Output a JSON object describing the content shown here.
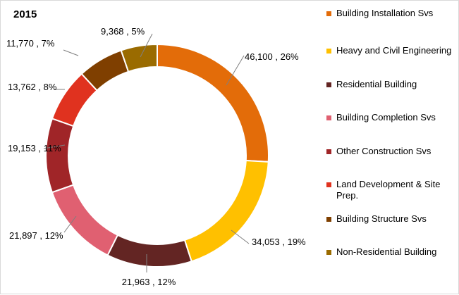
{
  "chart_data": {
    "type": "donut",
    "title": "2015",
    "categories": [
      "Building Installation Svs",
      "Heavy and Civil Engineering",
      "Residential Building",
      "Building Completion Svs",
      "Other Construction Svs",
      "Land Development & Site Prep.",
      "Building Structure Svs",
      "Non-Residential Building"
    ],
    "values": [
      46100,
      34053,
      21963,
      21897,
      19153,
      13762,
      11770,
      9368
    ],
    "percent_labels": [
      "26%",
      "19%",
      "12%",
      "12%",
      "11%",
      "8%",
      "7%",
      "5%"
    ],
    "data_labels": [
      "46,100 , 26%",
      "34,053 , 19%",
      "21,963 , 12%",
      "21,897 , 12%",
      "19,153 , 11%",
      "13,762 , 8%",
      "11,770 , 7%",
      "9,368 , 5%"
    ],
    "colors": [
      "#E36C09",
      "#FFC000",
      "#632523",
      "#E06071",
      "#A02528",
      "#E0321F",
      "#7F3F00",
      "#9A6B00"
    ],
    "legend_position": "right"
  }
}
